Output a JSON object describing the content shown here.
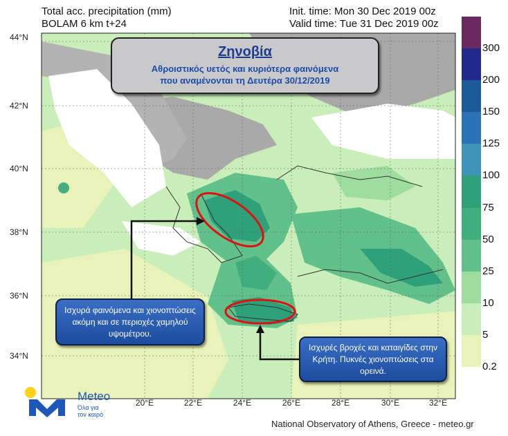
{
  "header": {
    "line1_left": "Total acc. precipitation (mm)",
    "line2_left": "BOLAM 6 km t+24",
    "line1_right": "Init. time: Mon 30 Dec 2019 00z",
    "line2_right": "Valid time: Tue 31 Dec 2019 00z"
  },
  "title_box": {
    "title": "Ζηνοβία",
    "subtitle_1": "Αθροιστικός υετός και κυριότερα φαινόμενα",
    "subtitle_2": "που αναμένονται τη Δευτέρα 30/12/2019"
  },
  "callouts": {
    "left": "Ισχυρά φαινόμενα και χιονοπτώσεις ακόμη και σε περιοχές χαμηλού υψομέτρου.",
    "right": "Ισχυρές βροχές και καταιγίδες στην Κρήτη. Πυκνές χιονοπτώσεις στα ορεινά."
  },
  "axes": {
    "lat_labels": [
      "44°N",
      "42°N",
      "40°N",
      "38°N",
      "36°N",
      "34°N"
    ],
    "lon_labels": [
      "20°E",
      "22°E",
      "24°E",
      "26°E",
      "28°E",
      "30°E",
      "32°E"
    ]
  },
  "legend": {
    "levels": [
      "300",
      "200",
      "150",
      "125",
      "100",
      "75",
      "50",
      "25",
      "10",
      "5",
      "0.2"
    ],
    "colors": [
      "#6b2a5f",
      "#1f2a8c",
      "#1c5a9a",
      "#2a73b4",
      "#3d94b8",
      "#2ea07a",
      "#41ae7e",
      "#62c08a",
      "#9edd9e",
      "#c9eeba",
      "#e9f2b8",
      "#ffffff"
    ]
  },
  "logo": {
    "brand": "Meteo",
    "tagline_1": "Όλα για",
    "tagline_2": "τον καιρό"
  },
  "footer": "National Observatory of Athens, Greece - meteo.gr"
}
